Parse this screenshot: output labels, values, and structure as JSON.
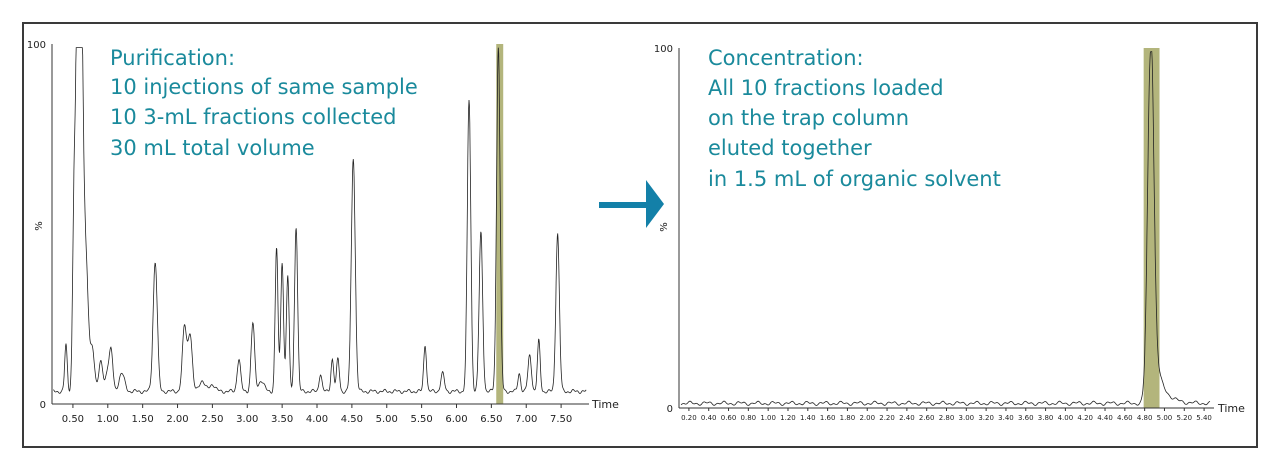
{
  "arrow_color": "#1380a8",
  "annotation_color": "#1a8a9c",
  "highlight_color": "#a6a865",
  "chart_data": [
    {
      "type": "line",
      "panel": "left",
      "annotation_lines": [
        "Purification:",
        "10 injections of same sample",
        "10 3-mL fractions collected",
        "30 mL total volume"
      ],
      "ylabel": "%",
      "y_ticks": [
        "0",
        "100"
      ],
      "xlabel": "Time",
      "x_ticks": [
        "0.50",
        "1.00",
        "1.50",
        "2.00",
        "2.50",
        "3.00",
        "3.50",
        "4.00",
        "4.50",
        "5.00",
        "5.50",
        "6.00",
        "6.50",
        "7.00",
        "7.50"
      ],
      "xlim": [
        0.2,
        7.9
      ],
      "ylim": [
        0,
        100
      ],
      "highlight": [
        6.57,
        6.67
      ],
      "baseline": 3.5,
      "peaks": [
        [
          0.4,
          13,
          0.018
        ],
        [
          0.52,
          58,
          0.022
        ],
        [
          0.56,
          60,
          0.018
        ],
        [
          0.6,
          92,
          0.03
        ],
        [
          0.63,
          55,
          0.04
        ],
        [
          0.7,
          22,
          0.03
        ],
        [
          0.78,
          12,
          0.03
        ],
        [
          0.9,
          8,
          0.03
        ],
        [
          1.0,
          6,
          0.03
        ],
        [
          1.05,
          10,
          0.025
        ],
        [
          1.2,
          5,
          0.04
        ],
        [
          1.68,
          36,
          0.03
        ],
        [
          2.1,
          18,
          0.03
        ],
        [
          2.18,
          16,
          0.03
        ],
        [
          2.35,
          3,
          0.04
        ],
        [
          2.5,
          2,
          0.04
        ],
        [
          2.88,
          9,
          0.025
        ],
        [
          3.08,
          19,
          0.025
        ],
        [
          3.2,
          3,
          0.04
        ],
        [
          3.42,
          40,
          0.02
        ],
        [
          3.5,
          36,
          0.02
        ],
        [
          3.58,
          32,
          0.02
        ],
        [
          3.7,
          46,
          0.022
        ],
        [
          4.05,
          5,
          0.02
        ],
        [
          4.22,
          9,
          0.02
        ],
        [
          4.3,
          9,
          0.02
        ],
        [
          4.52,
          65,
          0.028
        ],
        [
          5.55,
          13,
          0.02
        ],
        [
          5.8,
          5,
          0.025
        ],
        [
          6.18,
          81,
          0.025
        ],
        [
          6.35,
          44,
          0.025
        ],
        [
          6.6,
          96,
          0.025
        ],
        [
          6.9,
          5,
          0.02
        ],
        [
          7.05,
          10,
          0.025
        ],
        [
          7.18,
          14,
          0.02
        ],
        [
          7.45,
          44,
          0.025
        ]
      ]
    },
    {
      "type": "line",
      "panel": "right",
      "annotation_lines": [
        "Concentration:",
        "All 10 fractions loaded",
        "on the trap column",
        "eluted together",
        "in 1.5 mL of organic solvent"
      ],
      "ylabel": "%",
      "y_ticks": [
        "0",
        "100"
      ],
      "xlabel": "Time",
      "x_ticks": [
        "0.20",
        "0.40",
        "0.60",
        "0.80",
        "1.00",
        "1.20",
        "1.40",
        "1.60",
        "1.80",
        "2.00",
        "2.20",
        "2.40",
        "2.60",
        "2.80",
        "3.00",
        "3.20",
        "3.40",
        "3.60",
        "3.80",
        "4.00",
        "4.20",
        "4.40",
        "4.60",
        "4.80",
        "5.00",
        "5.20",
        "5.40"
      ],
      "xlim": [
        0.1,
        5.5
      ],
      "ylim": [
        0,
        100
      ],
      "highlight": [
        4.79,
        4.95
      ],
      "baseline": 1.3,
      "peaks": [
        [
          4.86,
          98,
          0.03
        ]
      ],
      "tail": [
        4.86,
        0.08
      ]
    }
  ]
}
